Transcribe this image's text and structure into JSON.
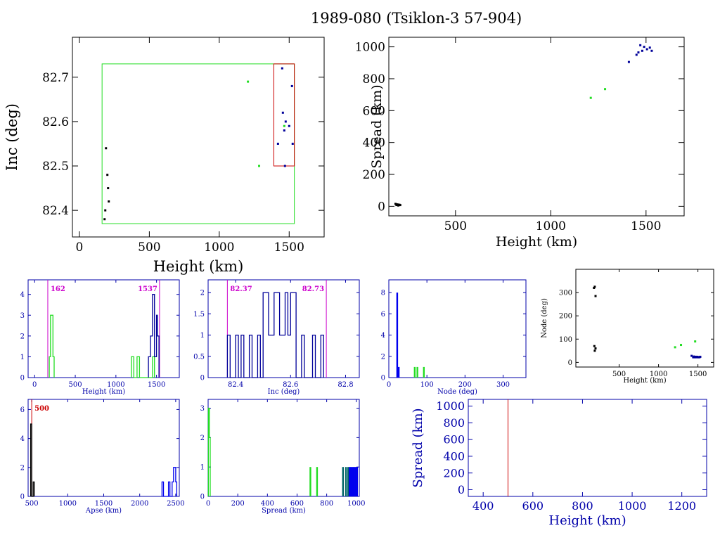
{
  "page": {
    "title": "1989-080 (Tsiklon-3 57-904)"
  },
  "colors": {
    "blue": "#000099",
    "bright_blue": "#0000ee",
    "green": "#22dd22",
    "red": "#cc0000",
    "magenta": "#cc00cc",
    "black": "#000000",
    "teal": "#006666"
  },
  "chart_data": [
    {
      "id": "inc-height",
      "type": "scatter",
      "title": "",
      "xlabel": "Height (km)",
      "ylabel": "Inc (deg)",
      "xlim": [
        -50,
        1750
      ],
      "ylim": [
        82.34,
        82.79
      ],
      "xticks": [
        0,
        500,
        1000,
        1500
      ],
      "yticks": [
        82.4,
        82.5,
        82.6,
        82.7
      ],
      "ytick_labels": [
        "82.4",
        "82.5",
        "82.6",
        "82.7"
      ],
      "series": [
        {
          "color": "black",
          "points": [
            [
              180,
              82.38
            ],
            [
              185,
              82.4
            ],
            [
              190,
              82.54
            ],
            [
              200,
              82.48
            ],
            [
              205,
              82.45
            ],
            [
              210,
              82.42
            ]
          ]
        },
        {
          "color": "green",
          "points": [
            [
              1205,
              82.69
            ],
            [
              1285,
              82.5
            ],
            [
              1465,
              82.59
            ]
          ]
        },
        {
          "color": "blue",
          "points": [
            [
              1420,
              82.55
            ],
            [
              1450,
              82.72
            ],
            [
              1455,
              82.62
            ],
            [
              1465,
              82.58
            ],
            [
              1470,
              82.5
            ],
            [
              1475,
              82.6
            ],
            [
              1500,
              82.59
            ],
            [
              1520,
              82.68
            ],
            [
              1525,
              82.55
            ]
          ]
        }
      ],
      "rects": [
        {
          "color": "green",
          "x": [
            162,
            1537
          ],
          "y": [
            82.37,
            82.73
          ]
        },
        {
          "color": "red",
          "x": [
            1390,
            1537
          ],
          "y": [
            82.5,
            82.73
          ]
        }
      ]
    },
    {
      "id": "spread-height",
      "type": "scatter",
      "title": "",
      "xlabel": "Height (km)",
      "ylabel": "Spread (km)",
      "xlim": [
        150,
        1700
      ],
      "ylim": [
        -60,
        1060
      ],
      "xticks": [
        500,
        1000,
        1500
      ],
      "yticks": [
        0,
        200,
        400,
        600,
        800,
        1000
      ],
      "series": [
        {
          "color": "black",
          "points": [
            [
              185,
              15
            ],
            [
              190,
              8
            ],
            [
              195,
              12
            ],
            [
              200,
              5
            ],
            [
              205,
              10
            ],
            [
              210,
              8
            ]
          ]
        },
        {
          "color": "green",
          "points": [
            [
              1210,
              680
            ],
            [
              1285,
              735
            ]
          ]
        },
        {
          "color": "blue",
          "points": [
            [
              1410,
              905
            ],
            [
              1450,
              950
            ],
            [
              1460,
              965
            ],
            [
              1470,
              1010
            ],
            [
              1480,
              975
            ],
            [
              1490,
              1000
            ],
            [
              1505,
              985
            ],
            [
              1520,
              995
            ],
            [
              1530,
              975
            ]
          ]
        }
      ]
    },
    {
      "id": "hist-height",
      "type": "bar",
      "title": "",
      "xlabel": "Height (km)",
      "ylabel": "",
      "xlim": [
        -80,
        1780
      ],
      "ylim": [
        0,
        4.7
      ],
      "xticks": [
        0,
        500,
        1000,
        1500
      ],
      "yticks": [
        0,
        1,
        2,
        3,
        4
      ],
      "vlines": [
        {
          "x": 162,
          "label": "162",
          "color": "magenta"
        },
        {
          "x": 1537,
          "label": "1537",
          "color": "magenta"
        }
      ],
      "series": [
        {
          "color": "green",
          "step": [
            [
              180,
              0
            ],
            [
              180,
              1
            ],
            [
              195,
              1
            ],
            [
              195,
              3
            ],
            [
              225,
              3
            ],
            [
              225,
              1
            ],
            [
              240,
              1
            ],
            [
              240,
              0
            ]
          ]
        },
        {
          "color": "green",
          "step": [
            [
              1190,
              0
            ],
            [
              1190,
              1
            ],
            [
              1220,
              1
            ],
            [
              1220,
              0
            ],
            [
              1260,
              0
            ],
            [
              1260,
              1
            ],
            [
              1290,
              1
            ],
            [
              1290,
              0
            ],
            [
              1450,
              0
            ],
            [
              1450,
              1
            ],
            [
              1475,
              1
            ],
            [
              1475,
              0
            ]
          ]
        },
        {
          "color": "blue",
          "step": [
            [
              1400,
              0
            ],
            [
              1400,
              1
            ],
            [
              1425,
              1
            ],
            [
              1425,
              2
            ],
            [
              1450,
              2
            ],
            [
              1450,
              4
            ],
            [
              1475,
              4
            ],
            [
              1475,
              1
            ],
            [
              1500,
              1
            ],
            [
              1500,
              3
            ],
            [
              1510,
              3
            ],
            [
              1510,
              2
            ],
            [
              1530,
              2
            ],
            [
              1530,
              0
            ]
          ]
        }
      ]
    },
    {
      "id": "hist-inc",
      "type": "bar",
      "title": "",
      "xlabel": "Inc (deg)",
      "ylabel": "",
      "xlim": [
        82.3,
        82.85
      ],
      "ylim": [
        0,
        2.3
      ],
      "xticks": [
        82.4,
        82.6,
        82.8
      ],
      "xtick_labels": [
        "82.4",
        "82.6",
        "82.8"
      ],
      "yticks": [
        0,
        0.5,
        1,
        1.5,
        2
      ],
      "ytick_labels": [
        "0",
        "0.5",
        "1",
        "1.5",
        "2"
      ],
      "vlines": [
        {
          "x": 82.37,
          "label": "82.37",
          "color": "magenta"
        },
        {
          "x": 82.73,
          "label": "82.73",
          "color": "magenta"
        }
      ],
      "series": [
        {
          "color": "blue",
          "step": [
            [
              82.37,
              0
            ],
            [
              82.37,
              1
            ],
            [
              82.38,
              1
            ],
            [
              82.38,
              0
            ],
            [
              82.4,
              0
            ],
            [
              82.4,
              1
            ],
            [
              82.41,
              1
            ],
            [
              82.41,
              0
            ],
            [
              82.42,
              0
            ],
            [
              82.42,
              1
            ],
            [
              82.43,
              1
            ],
            [
              82.43,
              0
            ],
            [
              82.45,
              0
            ],
            [
              82.45,
              1
            ],
            [
              82.46,
              1
            ],
            [
              82.46,
              0
            ],
            [
              82.48,
              0
            ],
            [
              82.48,
              1
            ],
            [
              82.49,
              1
            ],
            [
              82.49,
              0
            ],
            [
              82.5,
              0
            ],
            [
              82.5,
              2
            ],
            [
              82.52,
              2
            ],
            [
              82.52,
              1
            ],
            [
              82.54,
              1
            ],
            [
              82.54,
              2
            ],
            [
              82.56,
              2
            ],
            [
              82.56,
              1
            ],
            [
              82.58,
              1
            ],
            [
              82.58,
              2
            ],
            [
              82.59,
              2
            ],
            [
              82.59,
              1
            ],
            [
              82.6,
              1
            ],
            [
              82.6,
              2
            ],
            [
              82.62,
              2
            ],
            [
              82.62,
              0
            ],
            [
              82.64,
              0
            ],
            [
              82.64,
              1
            ],
            [
              82.65,
              1
            ],
            [
              82.65,
              0
            ],
            [
              82.68,
              0
            ],
            [
              82.68,
              1
            ],
            [
              82.69,
              1
            ],
            [
              82.69,
              0
            ],
            [
              82.71,
              0
            ],
            [
              82.71,
              1
            ],
            [
              82.72,
              1
            ],
            [
              82.72,
              0
            ]
          ]
        }
      ]
    },
    {
      "id": "hist-node",
      "type": "bar",
      "title": "",
      "xlabel": "Node (deg)",
      "ylabel": "",
      "xlim": [
        0,
        360
      ],
      "ylim": [
        0,
        9.2
      ],
      "xticks": [
        0,
        100,
        200,
        300
      ],
      "yticks": [
        0,
        2,
        4,
        6,
        8
      ],
      "series": [
        {
          "color": "bright_blue",
          "bars": [
            [
              22,
              8
            ],
            [
              26,
              1
            ]
          ]
        },
        {
          "color": "green",
          "bars": [
            [
              68,
              1
            ],
            [
              75,
              1
            ],
            [
              92,
              1
            ]
          ]
        }
      ]
    },
    {
      "id": "node-height",
      "type": "scatter",
      "title": "",
      "xlabel": "Height (km)",
      "ylabel": "Node (deg)",
      "xlim": [
        -50,
        1700
      ],
      "ylim": [
        -20,
        400
      ],
      "xticks": [
        500,
        1000,
        1500
      ],
      "yticks": [
        0,
        100,
        200,
        300
      ],
      "series": [
        {
          "color": "black",
          "points": [
            [
              180,
              320
            ],
            [
              190,
              325
            ],
            [
              200,
              285
            ],
            [
              185,
              70
            ],
            [
              190,
              50
            ],
            [
              200,
              60
            ]
          ]
        },
        {
          "color": "green",
          "points": [
            [
              1210,
              65
            ],
            [
              1285,
              75
            ],
            [
              1465,
              90
            ]
          ]
        },
        {
          "color": "blue",
          "points": [
            [
              1420,
              28
            ],
            [
              1440,
              22
            ],
            [
              1450,
              25
            ],
            [
              1460,
              22
            ],
            [
              1470,
              24
            ],
            [
              1480,
              22
            ],
            [
              1490,
              24
            ],
            [
              1500,
              22
            ],
            [
              1510,
              23
            ],
            [
              1520,
              22
            ],
            [
              1530,
              24
            ]
          ]
        }
      ]
    },
    {
      "id": "hist-apse",
      "type": "bar",
      "title": "",
      "xlabel": "Apse (km)",
      "ylabel": "",
      "xlim": [
        450,
        2550
      ],
      "ylim": [
        0,
        6.7
      ],
      "xticks": [
        500,
        1000,
        1500,
        2000,
        2500
      ],
      "yticks": [
        0,
        2,
        4,
        6
      ],
      "vlines": [
        {
          "x": 500,
          "label": "500",
          "color": "red"
        }
      ],
      "series": [
        {
          "color": "black",
          "step": [
            [
              485,
              0
            ],
            [
              485,
              5
            ],
            [
              500,
              5
            ],
            [
              500,
              0
            ],
            [
              520,
              0
            ],
            [
              520,
              1
            ],
            [
              535,
              1
            ],
            [
              535,
              0
            ]
          ]
        },
        {
          "color": "bright_blue",
          "step": [
            [
              2310,
              0
            ],
            [
              2310,
              1
            ],
            [
              2330,
              1
            ],
            [
              2330,
              0
            ],
            [
              2400,
              0
            ],
            [
              2400,
              1
            ],
            [
              2420,
              1
            ],
            [
              2420,
              0
            ],
            [
              2450,
              0
            ],
            [
              2450,
              1
            ],
            [
              2470,
              1
            ],
            [
              2470,
              2
            ],
            [
              2500,
              2
            ],
            [
              2500,
              1
            ],
            [
              2515,
              1
            ],
            [
              2515,
              0
            ]
          ]
        }
      ]
    },
    {
      "id": "hist-spread",
      "type": "bar",
      "title": "",
      "xlabel": "Spread (km)",
      "ylabel": "",
      "xlim": [
        0,
        1020
      ],
      "ylim": [
        0,
        3.3
      ],
      "xticks": [
        0,
        200,
        400,
        600,
        800,
        1000
      ],
      "yticks": [
        0,
        1,
        2,
        3
      ],
      "series": [
        {
          "color": "green",
          "step": [
            [
              2,
              0
            ],
            [
              2,
              3
            ],
            [
              8,
              3
            ],
            [
              8,
              2
            ],
            [
              14,
              2
            ],
            [
              14,
              0
            ]
          ]
        },
        {
          "color": "green",
          "bars": [
            [
              690,
              1
            ],
            [
              735,
              1
            ]
          ]
        },
        {
          "color": "teal",
          "bars": [
            [
              910,
              1
            ],
            [
              930,
              1
            ],
            [
              945,
              1
            ]
          ]
        },
        {
          "color": "bright_blue",
          "bars": [
            [
              955,
              1
            ],
            [
              965,
              1
            ],
            [
              975,
              1
            ],
            [
              985,
              1
            ],
            [
              995,
              1
            ],
            [
              1005,
              1
            ]
          ]
        }
      ]
    },
    {
      "id": "spread-height-2",
      "type": "line",
      "title": "",
      "xlabel": "Height (km)",
      "ylabel": "Spread (km)",
      "xlim": [
        340,
        1300
      ],
      "ylim": [
        -80,
        1080
      ],
      "xticks": [
        400,
        600,
        800,
        1000,
        1200
      ],
      "yticks": [
        0,
        200,
        400,
        600,
        800,
        1000
      ],
      "vlines": [
        {
          "x": 500,
          "label": "",
          "color": "red"
        }
      ],
      "series": []
    }
  ]
}
